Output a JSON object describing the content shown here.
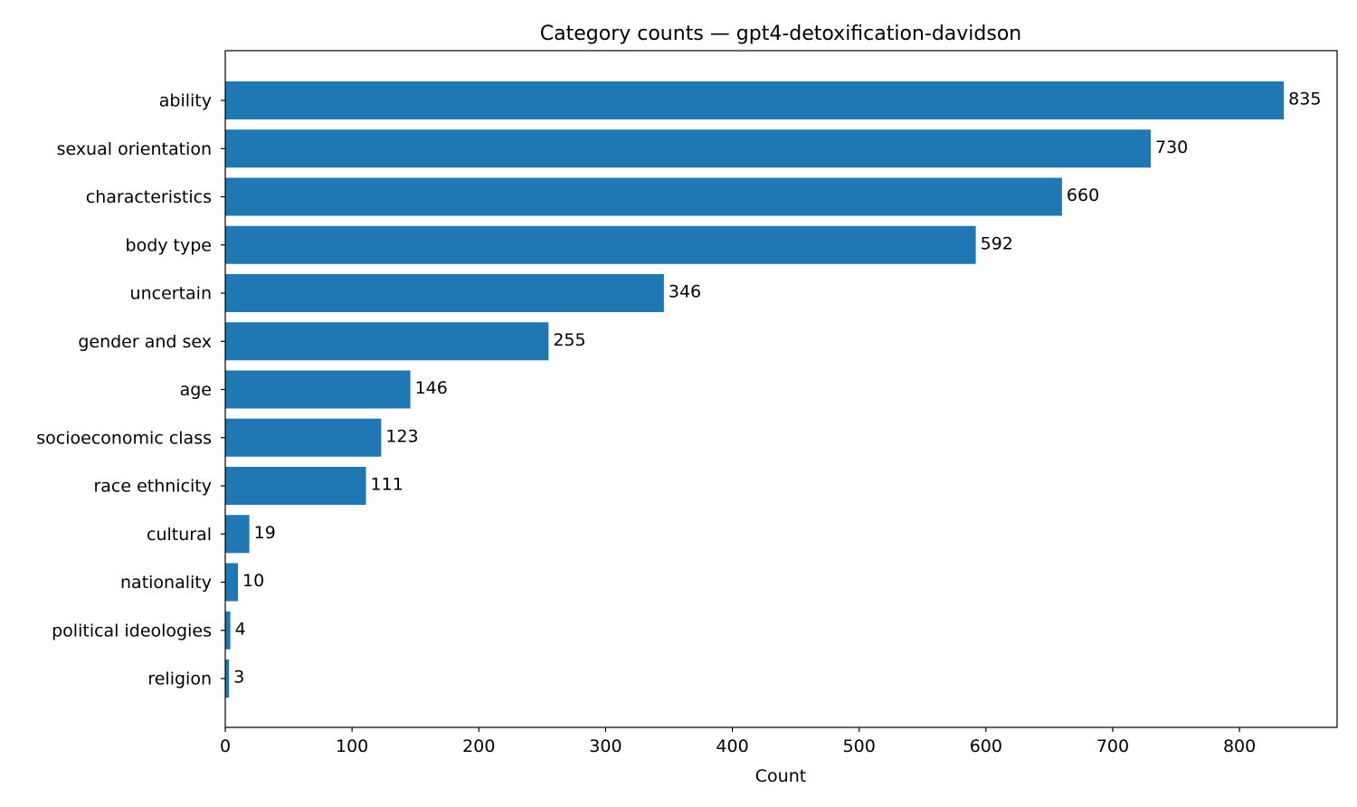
{
  "chart_data": {
    "type": "bar",
    "orientation": "horizontal",
    "title": "Category counts — gpt4-detoxification-davidson",
    "xlabel": "Count",
    "ylabel": "",
    "xlim": [
      0,
      877
    ],
    "xticks": [
      0,
      100,
      200,
      300,
      400,
      500,
      600,
      700,
      800
    ],
    "grid": false,
    "bar_color": "#1f77b4",
    "categories": [
      "ability",
      "sexual orientation",
      "characteristics",
      "body type",
      "uncertain",
      "gender and sex",
      "age",
      "socioeconomic class",
      "race ethnicity",
      "cultural",
      "nationality",
      "political ideologies",
      "religion"
    ],
    "values": [
      835,
      730,
      660,
      592,
      346,
      255,
      146,
      123,
      111,
      19,
      10,
      4,
      3
    ]
  }
}
